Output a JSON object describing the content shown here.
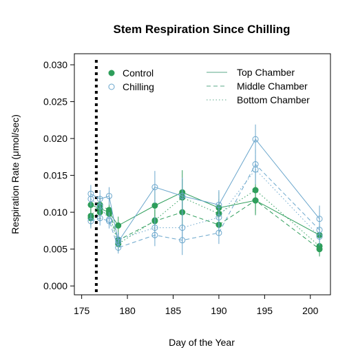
{
  "chart_data": {
    "type": "line",
    "title": "Stem Respiration Since Chilling",
    "xlabel": "Day of the Year",
    "ylabel": "Respiration Rate (μmol/sec)",
    "xlim": [
      174.2,
      202.2
    ],
    "ylim": [
      -0.0012,
      0.0315
    ],
    "xticks": [
      175,
      180,
      185,
      190,
      195,
      200
    ],
    "yticks": [
      0.0,
      0.005,
      0.01,
      0.015,
      0.02,
      0.025,
      0.03
    ],
    "ytick_labels": [
      "0.000",
      "0.005",
      "0.010",
      "0.015",
      "0.020",
      "0.025",
      "0.030"
    ],
    "chilling_day": 176.6,
    "grid": false,
    "colors": {
      "control": "#2e9e5b",
      "chilling": "#6aa6cc"
    },
    "legend_treatment": [
      {
        "label": "Control",
        "marker": "filled"
      },
      {
        "label": "Chilling",
        "marker": "open"
      }
    ],
    "legend_chamber": [
      {
        "label": "Top Chamber",
        "dash": "solid"
      },
      {
        "label": "Middle Chamber",
        "dash": "dashed"
      },
      {
        "label": "Bottom Chamber",
        "dash": "dotted"
      }
    ],
    "series": [
      {
        "treatment": "control",
        "chamber": "top",
        "x": [
          176,
          177,
          178,
          179,
          183,
          186,
          190,
          194,
          201
        ],
        "y": [
          0.011,
          0.0105,
          0.01,
          0.0082,
          0.0109,
          0.0127,
          0.0106,
          0.0116,
          0.0069
        ],
        "err": [
          0.0015,
          0.0015,
          0.0015,
          0.0012,
          0.002,
          0.003,
          0.0022,
          0.002,
          0.0015
        ]
      },
      {
        "treatment": "control",
        "chamber": "middle",
        "x": [
          176,
          177,
          178,
          179,
          183,
          186,
          190,
          194,
          201
        ],
        "y": [
          0.0095,
          0.011,
          0.0103,
          0.0062,
          0.0088,
          0.01,
          0.0083,
          0.0116,
          0.005
        ],
        "err": [
          0.0012,
          0.0012,
          0.0012,
          0.001,
          0.0015,
          0.002,
          0.0015,
          0.0018,
          0.001
        ]
      },
      {
        "treatment": "control",
        "chamber": "bottom",
        "x": [
          176,
          177,
          178,
          179,
          183,
          186,
          190,
          194,
          201
        ],
        "y": [
          0.0092,
          0.01,
          0.0098,
          0.0057,
          0.0089,
          0.012,
          0.0098,
          0.013,
          0.0054
        ],
        "err": [
          0.0012,
          0.0012,
          0.0012,
          0.001,
          0.0015,
          0.0025,
          0.002,
          0.0028,
          0.0012
        ]
      },
      {
        "treatment": "chilling",
        "chamber": "top",
        "x": [
          176,
          177,
          178,
          179,
          183,
          186,
          190,
          194,
          201
        ],
        "y": [
          0.0125,
          0.0118,
          0.0122,
          0.006,
          0.0134,
          0.0122,
          0.011,
          0.0199,
          0.0091
        ],
        "err": [
          0.0012,
          0.0012,
          0.0012,
          0.001,
          0.0022,
          0.0025,
          0.002,
          0.002,
          0.0018
        ]
      },
      {
        "treatment": "chilling",
        "chamber": "middle",
        "x": [
          176,
          177,
          178,
          179,
          183,
          186,
          190,
          194,
          201
        ],
        "y": [
          0.0088,
          0.0092,
          0.0088,
          0.0052,
          0.0069,
          0.0062,
          0.0072,
          0.0165,
          0.0076
        ],
        "err": [
          0.001,
          0.001,
          0.001,
          0.0008,
          0.0015,
          0.002,
          0.0015,
          0.002,
          0.0015
        ]
      },
      {
        "treatment": "chilling",
        "chamber": "bottom",
        "x": [
          176,
          177,
          178,
          179,
          183,
          186,
          190,
          194,
          201
        ],
        "y": [
          0.0118,
          0.0108,
          0.009,
          0.0063,
          0.0079,
          0.0079,
          0.0093,
          0.0158,
          0.0067
        ],
        "err": [
          0.001,
          0.001,
          0.001,
          0.001,
          0.0015,
          0.002,
          0.0015,
          0.002,
          0.0012
        ]
      }
    ]
  }
}
